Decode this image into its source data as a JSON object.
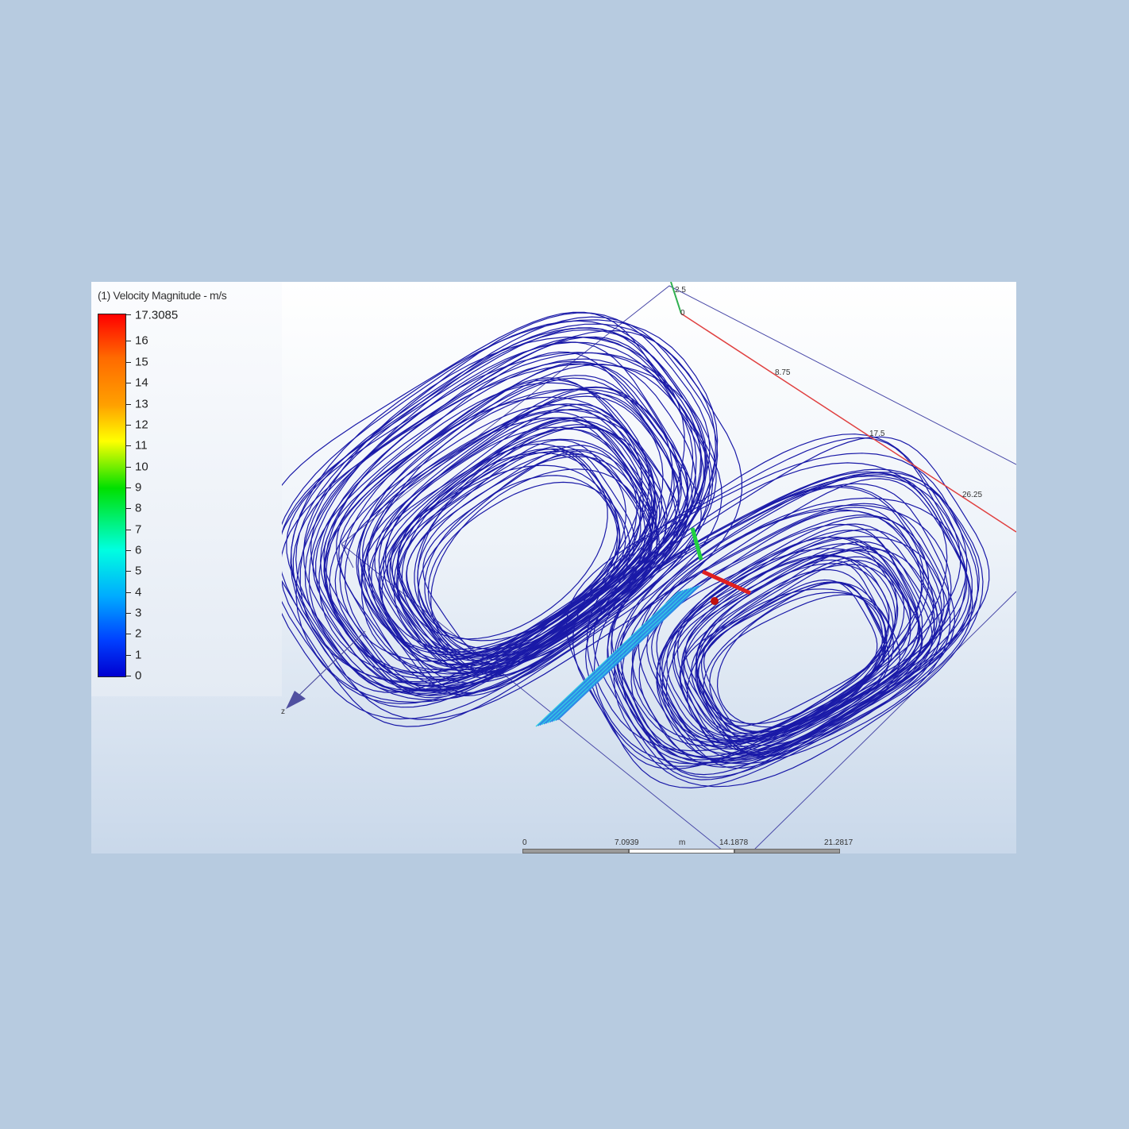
{
  "legend": {
    "title": "(1) Velocity Magnitude - m/s",
    "max_label": "17.3085",
    "ticks": [
      "16",
      "15",
      "14",
      "13",
      "12",
      "11",
      "10",
      "9",
      "8",
      "7",
      "6",
      "5",
      "4",
      "3",
      "2",
      "1",
      "0"
    ],
    "max_value": 17.3085,
    "min_value": 0,
    "colormap": [
      "#0000d0",
      "#0040ff",
      "#00aaff",
      "#00ffe0",
      "#00e000",
      "#ffff00",
      "#ffa000",
      "#ff6a00",
      "#ff0000"
    ]
  },
  "axes": {
    "y_label": "2.5",
    "origin_label": "0",
    "x_ticks": [
      "8.75",
      "17.5",
      "26.25"
    ],
    "z_label": "z",
    "x_axis_color": "#e04040",
    "y_axis_color": "#30b050",
    "z_axis_color": "#5050a0"
  },
  "scale_bar": {
    "labels": [
      "0",
      "7.0939",
      "14.1878",
      "21.2817"
    ],
    "unit": "m"
  },
  "streamline_color": "#1a1aa8"
}
